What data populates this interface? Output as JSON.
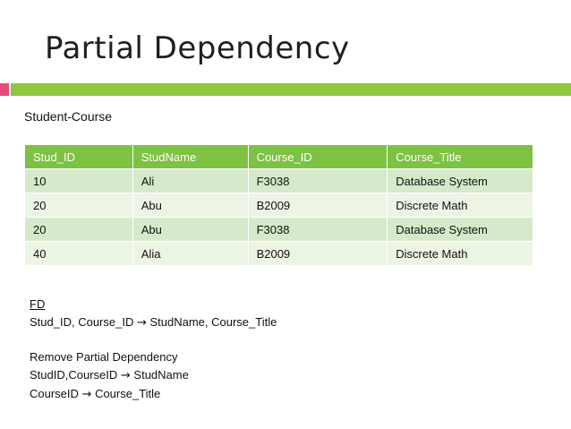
{
  "slide": {
    "title": "Partial Dependency",
    "colors": {
      "accent_pink": "#e6497c",
      "accent_green": "#8fc63f",
      "header_green": "#7dc243"
    }
  },
  "table": {
    "caption": "Student-Course",
    "headers": [
      "Stud_ID",
      "StudName",
      "Course_ID",
      "Course_Title"
    ],
    "rows": [
      [
        "10",
        "Ali",
        "F3038",
        "Database System"
      ],
      [
        "20",
        "Abu",
        "B2009",
        "Discrete Math"
      ],
      [
        "20",
        "Abu",
        "F3038",
        "Database System"
      ],
      [
        "40",
        "Alia",
        "B2009",
        "Discrete Math"
      ]
    ]
  },
  "fd": {
    "heading": "FD",
    "line1_left": "Stud_ID, Course_ID ",
    "line1_right": "StudName, Course_Title",
    "remove_heading": "Remove Partial Dependency",
    "line2_left": "StudID,CourseID ",
    "line2_right": "StudName",
    "line3_left": "CourseID ",
    "line3_right": "Course_Title",
    "arrow": "→"
  }
}
